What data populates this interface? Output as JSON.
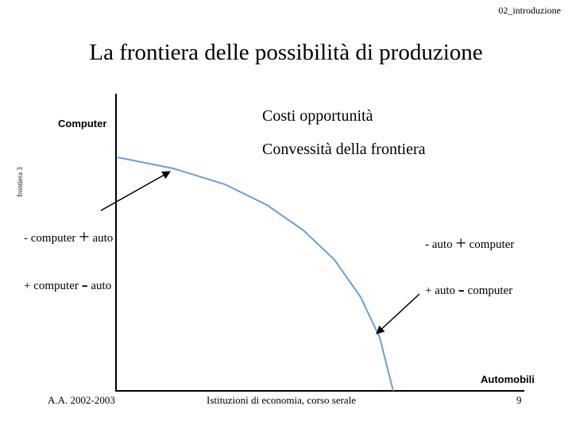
{
  "header": {
    "label": "02_introduzione"
  },
  "title": "La frontiera delle possibilità di produzione",
  "side_label": "frontiera 3",
  "diagram": {
    "y_axis_label": "Computer",
    "x_axis_label": "Automobili",
    "notes": [
      "Costi opportunità",
      "Convessità della frontiera"
    ],
    "tradeoffs_left": [
      {
        "sign1": "-",
        "item1": "computer",
        "sign2": "+",
        "item2": "auto"
      },
      {
        "sign1": "+",
        "item1": "computer",
        "sign2": "-",
        "item2": "auto"
      }
    ],
    "tradeoffs_right": [
      {
        "sign1": "-",
        "item1": "auto",
        "sign2": "+",
        "item2": "computer"
      },
      {
        "sign1": "+",
        "item1": "auto",
        "sign2": "-",
        "item2": "computer"
      }
    ],
    "colors": {
      "curve": "#6a9fd8",
      "axis": "#000000",
      "arrow": "#000000"
    }
  },
  "footer": {
    "left": "A.A. 2002-2003",
    "center": "Istituzioni di economia, corso serale",
    "page_number": "9"
  }
}
